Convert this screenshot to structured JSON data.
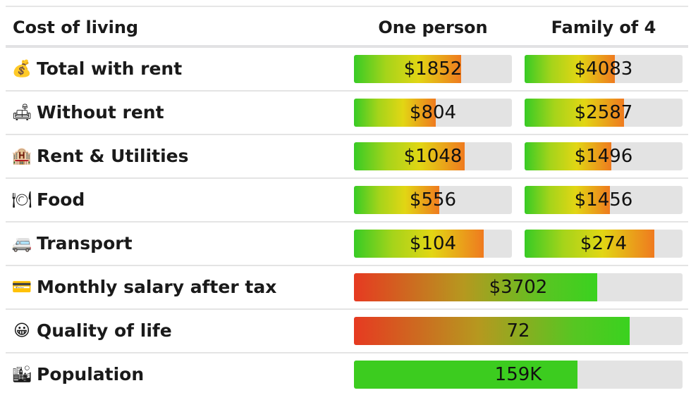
{
  "header": {
    "label": "Cost of living",
    "one_person": "One person",
    "family": "Family of 4"
  },
  "rows": [
    {
      "icon": "money-bag-icon",
      "glyph": "💰",
      "label": "Total with rent",
      "type": "pair",
      "one": {
        "text": "$1852",
        "fill": 0.68
      },
      "fam": {
        "text": "$4083",
        "fill": 0.57
      }
    },
    {
      "icon": "couch-icon",
      "glyph": "🛋",
      "label": "Without rent",
      "type": "pair",
      "one": {
        "text": "$804",
        "fill": 0.52
      },
      "fam": {
        "text": "$2587",
        "fill": 0.63
      }
    },
    {
      "icon": "hotel-icon",
      "glyph": "🏨",
      "label": "Rent & Utilities",
      "type": "pair",
      "one": {
        "text": "$1048",
        "fill": 0.7
      },
      "fam": {
        "text": "$1496",
        "fill": 0.55
      }
    },
    {
      "icon": "plate-icon",
      "glyph": "🍽",
      "label": "Food",
      "type": "pair",
      "one": {
        "text": "$556",
        "fill": 0.54
      },
      "fam": {
        "text": "$1456",
        "fill": 0.54
      }
    },
    {
      "icon": "bus-icon",
      "glyph": "🚐",
      "label": "Transport",
      "type": "pair",
      "one": {
        "text": "$104",
        "fill": 0.82
      },
      "fam": {
        "text": "$274",
        "fill": 0.82
      }
    },
    {
      "icon": "credit-card-icon",
      "glyph": "💳",
      "label": "Monthly salary after tax",
      "type": "wide",
      "style": "good",
      "bar": {
        "text": "$3702",
        "fill": 0.74
      }
    },
    {
      "icon": "smiley-icon",
      "glyph": "😀",
      "label": "Quality of life",
      "type": "wide",
      "style": "good",
      "bar": {
        "text": "72",
        "fill": 0.84
      }
    },
    {
      "icon": "city-icon",
      "glyph": "🏙",
      "label": "Population",
      "type": "wide",
      "style": "green",
      "bar": {
        "text": "159K",
        "fill": 0.68
      }
    }
  ],
  "colors": {
    "cost_gradient": [
      "#37cb25",
      "#e2d614",
      "#ef7a1f"
    ],
    "quality_gradient": [
      "#e63a21",
      "#b6981f",
      "#3ad21f"
    ],
    "population": "#3ccc1f",
    "bar_track": "#e3e3e3"
  }
}
